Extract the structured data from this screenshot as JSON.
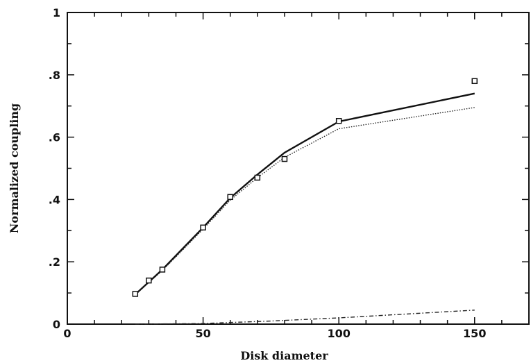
{
  "chart_data": {
    "type": "line",
    "title": "",
    "xlabel": "Disk diameter",
    "ylabel": "Normalized coupling",
    "xlim": [
      0,
      170
    ],
    "ylim": [
      0,
      1
    ],
    "x_ticks": [
      0,
      50,
      100,
      150
    ],
    "x_tick_labels": [
      "0",
      "50",
      "100",
      "150"
    ],
    "y_ticks": [
      0,
      0.2,
      0.4,
      0.6,
      0.8,
      1
    ],
    "y_tick_labels": [
      "0",
      ".2",
      ".4",
      ".6",
      ".8",
      "1"
    ],
    "grid": false,
    "legend": "none",
    "series": [
      {
        "style": "solid",
        "x": [
          25,
          35,
          50,
          60,
          70,
          80,
          100,
          150
        ],
        "y": [
          0.095,
          0.175,
          0.31,
          0.405,
          0.48,
          0.55,
          0.65,
          0.74
        ]
      },
      {
        "style": "dotted",
        "x": [
          25,
          35,
          50,
          60,
          70,
          80,
          100,
          150
        ],
        "y": [
          0.095,
          0.172,
          0.305,
          0.398,
          0.47,
          0.535,
          0.627,
          0.695
        ]
      },
      {
        "style": "dash-dot",
        "x": [
          25,
          50,
          75,
          100,
          150
        ],
        "y": [
          0.0,
          0.002,
          0.01,
          0.02,
          0.045
        ]
      },
      {
        "style": "markers",
        "x": [
          25,
          30,
          35,
          50,
          60,
          70,
          80,
          100,
          150
        ],
        "y": [
          0.097,
          0.14,
          0.175,
          0.31,
          0.408,
          0.47,
          0.53,
          0.652,
          0.78
        ]
      }
    ]
  }
}
